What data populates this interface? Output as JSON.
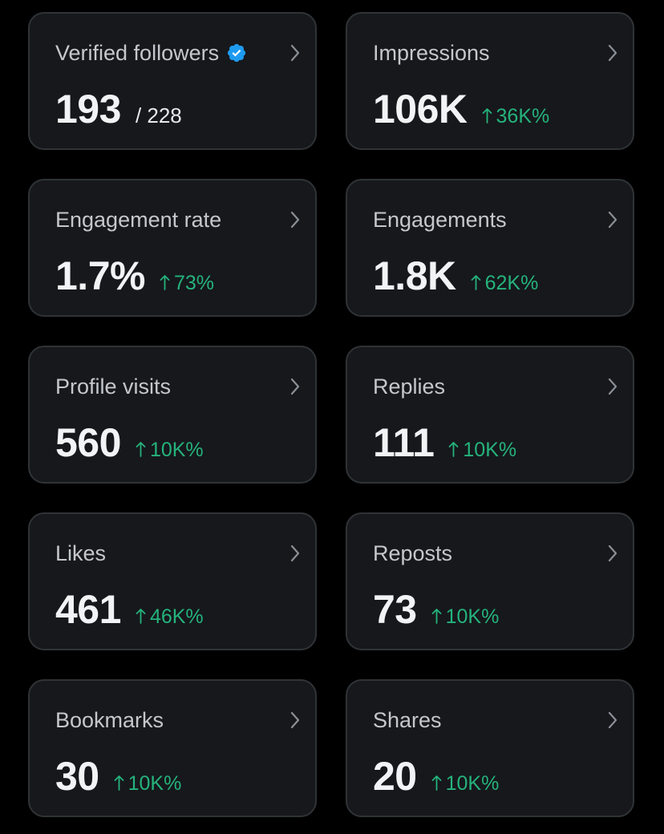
{
  "colors": {
    "background": "#000000",
    "card_background": "#16181c",
    "card_border": "#2f3336",
    "positive_change": "#25b37c",
    "verified_badge": "#1d9bf0"
  },
  "cards": [
    {
      "label": "Verified followers",
      "value": "193",
      "total": "/ 228",
      "icon": "verified-badge-icon",
      "action_icon": "chevron-right-icon"
    },
    {
      "label": "Impressions",
      "value": "106K",
      "change": "36K%",
      "change_icon": "arrow-up-icon",
      "action_icon": "chevron-right-icon"
    },
    {
      "label": "Engagement rate",
      "value": "1.7%",
      "change": "73%",
      "change_icon": "arrow-up-icon",
      "action_icon": "chevron-right-icon"
    },
    {
      "label": "Engagements",
      "value": "1.8K",
      "change": "62K%",
      "change_icon": "arrow-up-icon",
      "action_icon": "chevron-right-icon"
    },
    {
      "label": "Profile visits",
      "value": "560",
      "change": "10K%",
      "change_icon": "arrow-up-icon",
      "action_icon": "chevron-right-icon"
    },
    {
      "label": "Replies",
      "value": "111",
      "change": "10K%",
      "change_icon": "arrow-up-icon",
      "action_icon": "chevron-right-icon"
    },
    {
      "label": "Likes",
      "value": "461",
      "change": "46K%",
      "change_icon": "arrow-up-icon",
      "action_icon": "chevron-right-icon"
    },
    {
      "label": "Reposts",
      "value": "73",
      "change": "10K%",
      "change_icon": "arrow-up-icon",
      "action_icon": "chevron-right-icon"
    },
    {
      "label": "Bookmarks",
      "value": "30",
      "change": "10K%",
      "change_icon": "arrow-up-icon",
      "action_icon": "chevron-right-icon"
    },
    {
      "label": "Shares",
      "value": "20",
      "change": "10K%",
      "change_icon": "arrow-up-icon",
      "action_icon": "chevron-right-icon"
    }
  ]
}
